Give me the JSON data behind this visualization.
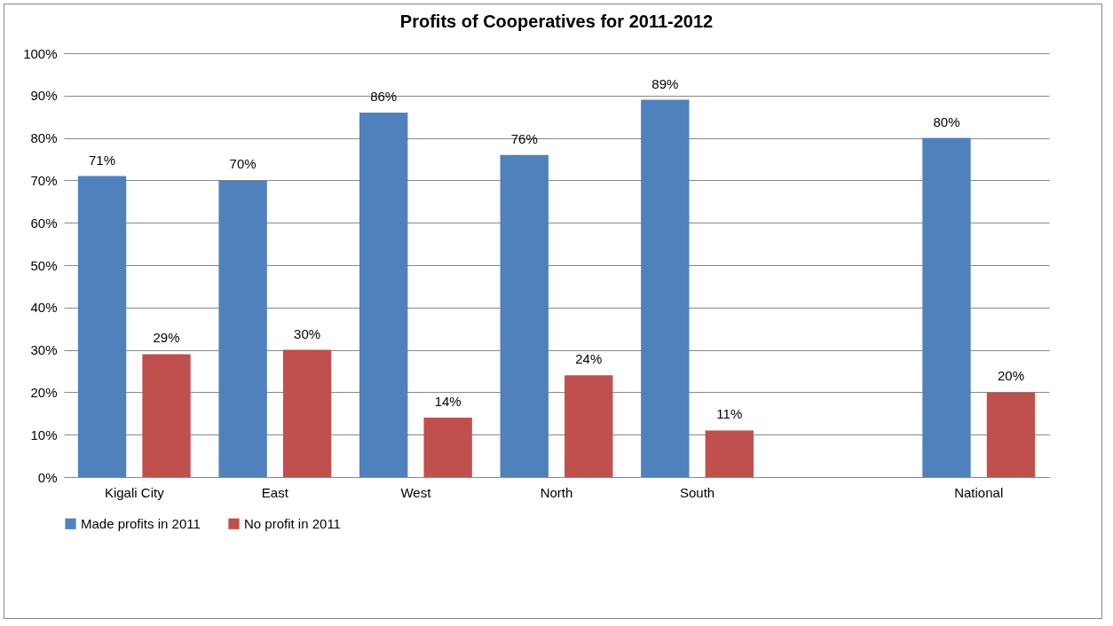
{
  "chart_data": {
    "type": "bar",
    "title": "Profits of Cooperatives  for 2011-2012",
    "categories": [
      "Kigali City",
      "East",
      "West",
      "North",
      "South",
      null,
      "National"
    ],
    "series": [
      {
        "name": "Made profits in 2011",
        "color": "#4f81bd",
        "values": [
          71,
          70,
          86,
          76,
          89,
          null,
          80
        ],
        "value_labels": [
          "71%",
          "70%",
          "86%",
          "76%",
          "89%",
          null,
          "80%"
        ]
      },
      {
        "name": "No profit in 2011",
        "color": "#c0504d",
        "values": [
          29,
          30,
          14,
          24,
          11,
          null,
          20
        ],
        "value_labels": [
          "29%",
          "30%",
          "14%",
          "24%",
          "11%",
          null,
          "20%"
        ]
      }
    ],
    "ylim": [
      0,
      100
    ],
    "yticks": [
      {
        "value": 0,
        "label": "0%"
      },
      {
        "value": 10,
        "label": "10%"
      },
      {
        "value": 20,
        "label": "20%"
      },
      {
        "value": 30,
        "label": "30%"
      },
      {
        "value": 40,
        "label": "40%"
      },
      {
        "value": 50,
        "label": "50%"
      },
      {
        "value": 60,
        "label": "60%"
      },
      {
        "value": 70,
        "label": "70%"
      },
      {
        "value": 80,
        "label": "80%"
      },
      {
        "value": 90,
        "label": "90%"
      },
      {
        "value": 100,
        "label": "100%"
      }
    ],
    "grid": "y",
    "legend": "bottom"
  }
}
